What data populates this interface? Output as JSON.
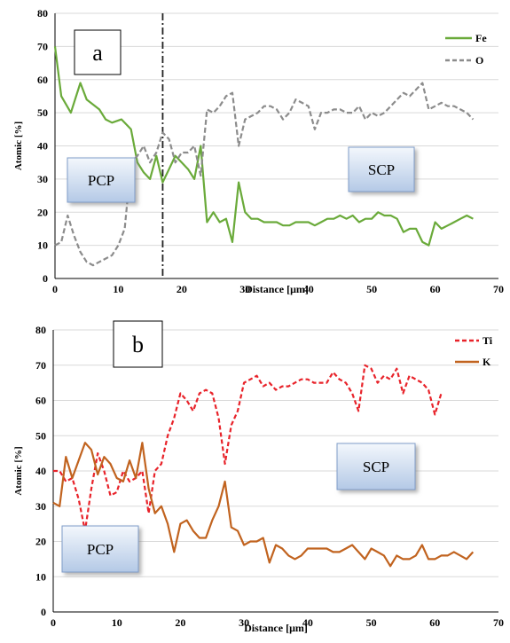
{
  "chart_data": [
    {
      "type": "line",
      "panel_label": "a",
      "xlabel": "Distance [μm]",
      "ylabel": "Atomic [%]",
      "xlim": [
        0,
        70
      ],
      "ylim": [
        0,
        80
      ],
      "xticks": [
        0,
        10,
        20,
        30,
        40,
        50,
        60,
        70
      ],
      "yticks": [
        0,
        10,
        20,
        30,
        40,
        50,
        60,
        70,
        80
      ],
      "grid": "horizontal",
      "legend_position": "top-right",
      "boundary_x": 17,
      "region_labels": {
        "left": "PCP",
        "right": "SCP"
      },
      "series": [
        {
          "name": "Fe",
          "color": "#6aaa3a",
          "dash": "solid",
          "x": [
            0,
            1,
            2.5,
            4,
            5,
            7,
            8,
            9,
            10.5,
            12,
            13,
            14,
            15,
            16,
            17,
            18,
            19,
            20,
            21,
            22,
            23,
            24,
            25,
            26,
            27,
            28,
            29,
            30,
            31,
            32,
            33,
            34,
            35,
            36,
            37,
            38,
            39,
            40,
            41,
            42,
            43,
            44,
            45,
            46,
            47,
            48,
            49,
            50,
            51,
            52,
            53,
            54,
            55,
            56,
            57,
            58,
            59,
            60,
            61,
            62,
            63,
            64,
            65,
            66
          ],
          "y": [
            70,
            55,
            50,
            59,
            54,
            51,
            48,
            47,
            48,
            45,
            35,
            32,
            30,
            37,
            29,
            33,
            37,
            35,
            33,
            30,
            40,
            17,
            20,
            17,
            18,
            11,
            29,
            20,
            18,
            18,
            17,
            17,
            17,
            16,
            16,
            17,
            17,
            17,
            16,
            17,
            18,
            18,
            19,
            18,
            19,
            17,
            18,
            18,
            20,
            19,
            19,
            18,
            14,
            15,
            15,
            11,
            10,
            17,
            15,
            16,
            17,
            18,
            19,
            18
          ]
        },
        {
          "name": "O",
          "color": "#8c8c8c",
          "dash": "dashed",
          "x": [
            0,
            1,
            2,
            3,
            4,
            5,
            6,
            7,
            8,
            9,
            10,
            11,
            12,
            13,
            14,
            15,
            16,
            17,
            18,
            19,
            20,
            21,
            22,
            23,
            24,
            25,
            26,
            27,
            28,
            29,
            30,
            31,
            32,
            33,
            34,
            35,
            36,
            37,
            38,
            39,
            40,
            41,
            42,
            43,
            44,
            45,
            46,
            47,
            48,
            49,
            50,
            51,
            52,
            53,
            54,
            55,
            56,
            57,
            58,
            59,
            60,
            61,
            62,
            63,
            64,
            65,
            66
          ],
          "y": [
            10,
            11,
            19,
            13,
            8,
            5,
            4,
            5,
            6,
            7,
            10,
            15,
            35,
            37,
            40,
            35,
            38,
            44,
            42,
            35,
            38,
            38,
            40,
            31,
            51,
            50,
            52,
            55,
            56,
            40,
            48,
            49,
            50,
            52,
            52,
            51,
            48,
            50,
            54,
            53,
            52,
            45,
            50,
            50,
            51,
            51,
            50,
            50,
            52,
            48,
            50,
            49,
            50,
            52,
            54,
            56,
            55,
            57,
            59,
            51,
            52,
            53,
            52,
            52,
            51,
            50,
            48
          ]
        }
      ]
    },
    {
      "type": "line",
      "panel_label": "b",
      "xlabel": "Distance [μm]",
      "ylabel": "Atomic [%]",
      "xlim": [
        0,
        70
      ],
      "ylim": [
        0,
        80
      ],
      "xticks": [
        0,
        10,
        20,
        30,
        40,
        50,
        60,
        70
      ],
      "yticks": [
        0,
        10,
        20,
        30,
        40,
        50,
        60,
        70,
        80
      ],
      "grid": "horizontal",
      "legend_position": "top-right",
      "region_labels": {
        "left": "PCP",
        "right": "SCP"
      },
      "series": [
        {
          "name": "Ti",
          "color": "#e8232a",
          "dash": "dashed",
          "x": [
            0,
            1,
            2,
            3,
            4,
            5,
            6,
            7,
            8,
            9,
            10,
            11,
            12,
            13,
            14,
            15,
            16,
            17,
            18,
            19,
            20,
            21,
            22,
            23,
            24,
            25,
            26,
            27,
            28,
            29,
            30,
            31,
            32,
            33,
            34,
            35,
            36,
            37,
            38,
            39,
            40,
            41,
            42,
            43,
            44,
            45,
            46,
            47,
            48,
            49,
            50,
            51,
            52,
            53,
            54,
            55,
            56,
            57,
            58,
            59,
            60,
            61
          ],
          "y": [
            40,
            40,
            37,
            38,
            32,
            23,
            35,
            45,
            40,
            33,
            34,
            40,
            37,
            38,
            40,
            28,
            40,
            42,
            50,
            55,
            62,
            60,
            57,
            62,
            63,
            62,
            55,
            42,
            53,
            57,
            65,
            66,
            67,
            64,
            65,
            63,
            64,
            64,
            65,
            66,
            66,
            65,
            65,
            65,
            68,
            66,
            65,
            62,
            57,
            70,
            69,
            65,
            67,
            66,
            69,
            62,
            67,
            66,
            65,
            63,
            56,
            62
          ]
        },
        {
          "name": "K",
          "color": "#c1631f",
          "dash": "solid",
          "x": [
            0,
            1,
            2,
            3,
            4,
            5,
            6,
            7,
            8,
            9,
            10,
            11,
            12,
            13,
            14,
            15,
            16,
            17,
            18,
            19,
            20,
            21,
            22,
            23,
            24,
            25,
            26,
            27,
            28,
            29,
            30,
            31,
            32,
            33,
            34,
            35,
            36,
            37,
            38,
            39,
            40,
            41,
            42,
            43,
            44,
            45,
            46,
            47,
            48,
            49,
            50,
            51,
            52,
            53,
            54,
            55,
            56,
            57,
            58,
            59,
            60,
            61,
            62,
            63,
            64,
            65,
            66
          ],
          "y": [
            31,
            30,
            44,
            38,
            43,
            48,
            46,
            39,
            44,
            42,
            38,
            37,
            43,
            38,
            48,
            35,
            28,
            30,
            25,
            17,
            25,
            26,
            23,
            21,
            21,
            26,
            30,
            37,
            24,
            23,
            19,
            20,
            20,
            21,
            14,
            19,
            18,
            16,
            15,
            16,
            18,
            18,
            18,
            18,
            17,
            17,
            18,
            19,
            17,
            15,
            18,
            17,
            16,
            13,
            16,
            15,
            15,
            16,
            19,
            15,
            15,
            16,
            16,
            17,
            16,
            15,
            17
          ]
        }
      ]
    }
  ]
}
